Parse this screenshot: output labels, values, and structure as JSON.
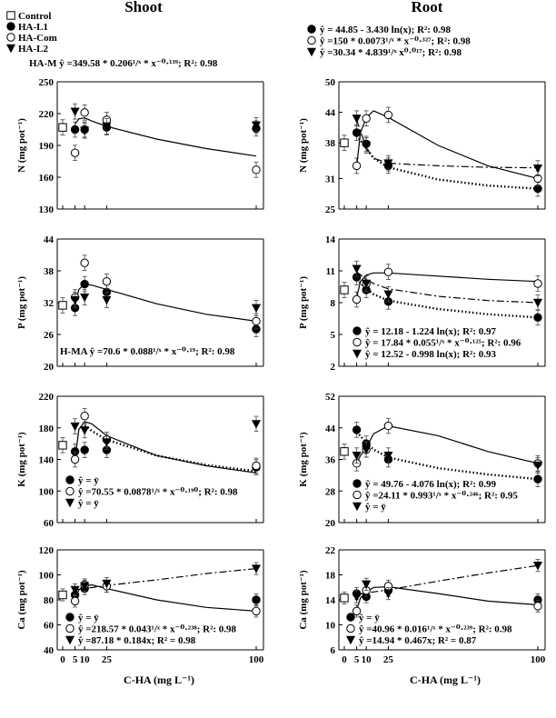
{
  "column_titles": {
    "left": "Shoot",
    "right": "Root"
  },
  "x_axis_title": "C-HA (mg L⁻¹)",
  "x_ticks": [
    "0",
    "5",
    "10",
    "25",
    "100"
  ],
  "legend": [
    {
      "marker": "square-open",
      "label": "Control"
    },
    {
      "marker": "circle-filled",
      "label": "HA-L1"
    },
    {
      "marker": "circle-open",
      "label": "HA-Com"
    },
    {
      "marker": "triangle-filled",
      "label": "HA-L2"
    }
  ],
  "chart_data": [
    {
      "type": "scatter",
      "panel": "shoot-N",
      "ylabel": "N (mg pot⁻¹)",
      "ylim": [
        130,
        250
      ],
      "yticks": [
        130,
        160,
        190,
        220,
        250
      ],
      "xlim": [
        0,
        100
      ],
      "series": [
        {
          "name": "Control",
          "x": [
            0
          ],
          "y": [
            207
          ]
        },
        {
          "name": "HA-L1",
          "x": [
            5,
            10,
            25,
            100
          ],
          "y": [
            205,
            205,
            207,
            206
          ]
        },
        {
          "name": "HA-Com",
          "x": [
            5,
            10,
            25,
            100
          ],
          "y": [
            183,
            221,
            214,
            167
          ]
        },
        {
          "name": "HA-L2",
          "x": [
            5,
            10,
            25,
            100
          ],
          "y": [
            222,
            204,
            208,
            209
          ]
        }
      ],
      "equations": [
        "HA-M   ŷ =349.58 * 0.206¹/ˣ * x⁻⁰·¹³⁹; R²: 0.98"
      ]
    },
    {
      "type": "scatter",
      "panel": "root-N",
      "ylabel": "N (mg pot⁻¹)",
      "ylim": [
        25,
        50
      ],
      "yticks": [
        25,
        31,
        38,
        44,
        50
      ],
      "xlim": [
        0,
        100
      ],
      "series": [
        {
          "name": "Control",
          "x": [
            0
          ],
          "y": [
            38
          ]
        },
        {
          "name": "HA-L1",
          "x": [
            5,
            10,
            25,
            100
          ],
          "y": [
            40,
            37.8,
            33.5,
            29
          ]
        },
        {
          "name": "HA-Com",
          "x": [
            5,
            10,
            25,
            100
          ],
          "y": [
            33.5,
            42.8,
            43.5,
            31
          ]
        },
        {
          "name": "HA-L2",
          "x": [
            5,
            10,
            25,
            100
          ],
          "y": [
            42.8,
            37.5,
            34,
            33
          ]
        }
      ],
      "equations": [
        "ŷ = 44.85 - 3.430 ln(x); R²: 0.98",
        "ŷ =150 * 0.0073¹/ˣ * x⁻⁰·³²⁷; R²: 0.98",
        "ŷ =30.34 * 4.839¹/ˣ x⁰·⁰¹⁷; R²: 0.98"
      ]
    },
    {
      "type": "scatter",
      "panel": "shoot-P",
      "ylabel": "P (mg pot⁻¹)",
      "ylim": [
        20,
        44
      ],
      "yticks": [
        20,
        26,
        32,
        38,
        44
      ],
      "xlim": [
        0,
        100
      ],
      "series": [
        {
          "name": "Control",
          "x": [
            0
          ],
          "y": [
            31.5
          ]
        },
        {
          "name": "HA-L1",
          "x": [
            5,
            10,
            25,
            100
          ],
          "y": [
            31,
            35.5,
            34,
            27
          ]
        },
        {
          "name": "HA-Com",
          "x": [
            5,
            10,
            25,
            100
          ],
          "y": [
            33,
            39.5,
            36,
            28.5
          ]
        },
        {
          "name": "HA-L2",
          "x": [
            5,
            10,
            25,
            100
          ],
          "y": [
            32.5,
            33,
            32.5,
            31
          ]
        }
      ],
      "equations": [
        "H-MA   ŷ =70.6 * 0.088¹/ˣ * x⁻⁰·¹⁹; R²: 0.98"
      ]
    },
    {
      "type": "scatter",
      "panel": "root-P",
      "ylabel": "P (mg pot⁻¹)",
      "ylim": [
        2,
        14
      ],
      "yticks": [
        2,
        5,
        8,
        11,
        14
      ],
      "xlim": [
        0,
        100
      ],
      "series": [
        {
          "name": "Control",
          "x": [
            0
          ],
          "y": [
            9.2
          ]
        },
        {
          "name": "HA-L1",
          "x": [
            5,
            10,
            25,
            100
          ],
          "y": [
            10.4,
            9.2,
            8.1,
            6.6
          ]
        },
        {
          "name": "HA-Com",
          "x": [
            5,
            10,
            25,
            100
          ],
          "y": [
            8.3,
            9.8,
            10.9,
            9.8
          ]
        },
        {
          "name": "HA-L2",
          "x": [
            5,
            10,
            25,
            100
          ],
          "y": [
            11.2,
            9.8,
            8.8,
            8
          ]
        }
      ],
      "equations": [
        "ŷ = 12.18 - 1.224 ln(x); R²: 0.97",
        "ŷ = 17.84 * 0.055¹/ˣ * x⁻⁰·¹²⁵; R²: 0.96",
        "ŷ = 12.52 - 0.998 ln(x); R²: 0.93"
      ]
    },
    {
      "type": "scatter",
      "panel": "shoot-K",
      "ylabel": "K (mg pot⁻¹)",
      "ylim": [
        60,
        220
      ],
      "yticks": [
        60,
        100,
        140,
        180,
        220
      ],
      "xlim": [
        0,
        100
      ],
      "series": [
        {
          "name": "Control",
          "x": [
            0
          ],
          "y": [
            158
          ]
        },
        {
          "name": "HA-L1",
          "x": [
            5,
            10,
            25,
            100
          ],
          "y": [
            150,
            152,
            152,
            130
          ]
        },
        {
          "name": "HA-Com",
          "x": [
            5,
            10,
            25,
            100
          ],
          "y": [
            140,
            195,
            165,
            132
          ]
        },
        {
          "name": "HA-L2",
          "x": [
            5,
            10,
            25,
            100
          ],
          "y": [
            182,
            177,
            162,
            185
          ]
        }
      ],
      "equations": [
        "ŷ = ȳ",
        "ŷ =70.55 * 0.0878¹/ˣ * x⁻⁰·¹⁹⁰; R²: 0.98",
        "ŷ = ȳ"
      ]
    },
    {
      "type": "scatter",
      "panel": "root-K",
      "ylabel": "K (mg pot⁻¹)",
      "ylim": [
        20,
        52
      ],
      "yticks": [
        20,
        28,
        36,
        44,
        52
      ],
      "xlim": [
        0,
        100
      ],
      "series": [
        {
          "name": "Control",
          "x": [
            0
          ],
          "y": [
            38
          ]
        },
        {
          "name": "HA-L1",
          "x": [
            5,
            10,
            25,
            100
          ],
          "y": [
            43.5,
            40,
            36,
            31
          ]
        },
        {
          "name": "HA-Com",
          "x": [
            5,
            10,
            25,
            100
          ],
          "y": [
            35,
            38.5,
            44.5,
            35
          ]
        },
        {
          "name": "HA-L2",
          "x": [
            5,
            10,
            25,
            100
          ],
          "y": [
            37,
            38.5,
            37,
            34.5
          ]
        }
      ],
      "equations": [
        "ŷ = 49.76 - 4.076 ln(x); R²: 0.99",
        "ŷ =24.11 * 0.993¹/ˣ * x⁻⁰·²⁴⁶; R²: 0.95",
        "ŷ = ȳ"
      ]
    },
    {
      "type": "scatter",
      "panel": "shoot-Ca",
      "ylabel": "Ca (mg pot⁻¹)",
      "ylim": [
        40,
        120
      ],
      "yticks": [
        40,
        60,
        80,
        100,
        120
      ],
      "xlim": [
        0,
        100
      ],
      "series": [
        {
          "name": "Control",
          "x": [
            0
          ],
          "y": [
            84
          ]
        },
        {
          "name": "HA-L1",
          "x": [
            5,
            10,
            25,
            100
          ],
          "y": [
            84,
            89,
            91,
            80
          ]
        },
        {
          "name": "HA-Com",
          "x": [
            5,
            10,
            25,
            100
          ],
          "y": [
            79,
            92,
            91,
            71
          ]
        },
        {
          "name": "HA-L2",
          "x": [
            5,
            10,
            25,
            100
          ],
          "y": [
            88,
            91,
            93,
            105
          ]
        }
      ],
      "equations": [
        "ŷ = ȳ",
        "ŷ =218.57 * 0.043¹/ˣ * x⁻⁰·²³⁸; R²: 0.98",
        "ŷ =87.18 * 0.184x; R² = 0.98"
      ]
    },
    {
      "type": "scatter",
      "panel": "root-Ca",
      "ylabel": "Ca (mg pot⁻¹)",
      "ylim": [
        6,
        22
      ],
      "yticks": [
        6,
        10,
        14,
        18,
        22
      ],
      "xlim": [
        0,
        100
      ],
      "series": [
        {
          "name": "Control",
          "x": [
            0
          ],
          "y": [
            14.3
          ]
        },
        {
          "name": "HA-L1",
          "x": [
            5,
            10,
            25,
            100
          ],
          "y": [
            15,
            14.5,
            15.5,
            14
          ]
        },
        {
          "name": "HA-Com",
          "x": [
            5,
            10,
            25,
            100
          ],
          "y": [
            12.2,
            15.5,
            16.2,
            13
          ]
        },
        {
          "name": "HA-L2",
          "x": [
            5,
            10,
            25,
            100
          ],
          "y": [
            14.5,
            16.5,
            15,
            19.5
          ]
        }
      ],
      "equations": [
        "ŷ = ȳ",
        "ŷ =40.96 * 0.016¹/ˣ * x⁻⁰·²³⁹; R²: 0.98",
        "ŷ =14.94 * 0.467x; R² = 0.87"
      ]
    }
  ]
}
